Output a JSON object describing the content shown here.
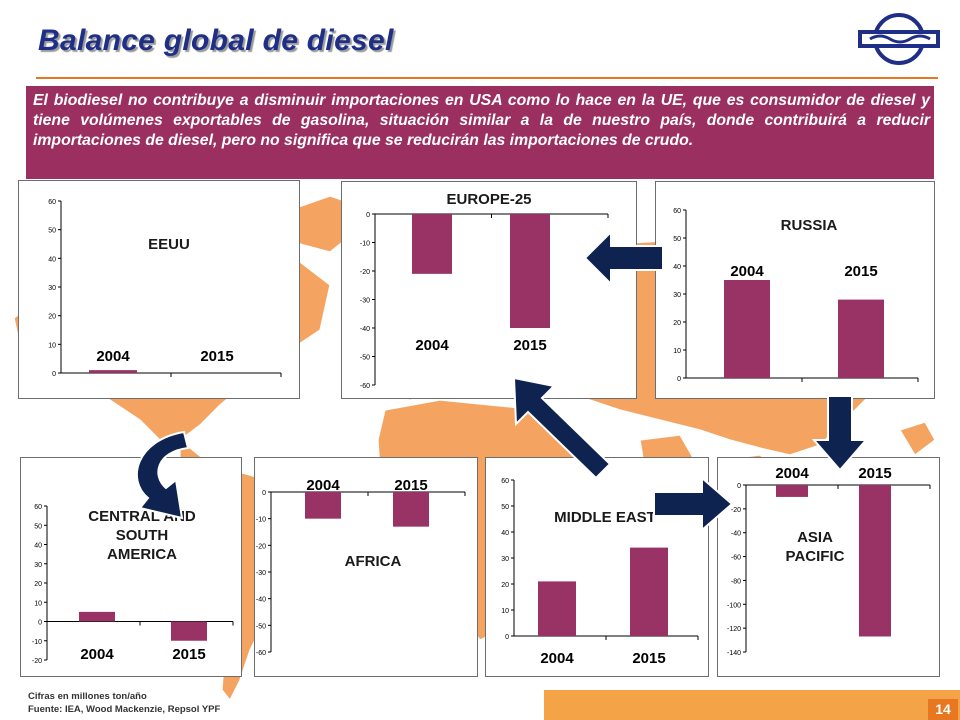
{
  "page": {
    "title": "Balance global  de diesel",
    "note": "El biodiesel  no contribuye a disminuir importaciones en USA como lo hace en  la UE, que es consumidor de diesel y tiene volúmenes exportables de gasolina, situación similar a la de nuestro país, donde contribuirá a reducir importaciones de diesel, pero no significa que se reducirán las importaciones de crudo.",
    "units_note": "Cifras en millones ton/año",
    "source": "Fuente: IEA, Wood Mackenzie, Repsol YPF",
    "page_number": "14",
    "colors": {
      "bar": "#993366",
      "title": "#1f2f87",
      "note_bg": "#9b3060",
      "map": "#f4a460",
      "accent": "#e87722",
      "arrow": "#0f2350"
    },
    "icons": [
      "company-logo-icon",
      "world-map",
      "arrow-left-icon",
      "arrow-down-icon",
      "arrow-right-icon",
      "arrow-up-left-icon",
      "curved-arrow-icon"
    ]
  },
  "chart_data": [
    {
      "type": "bar",
      "region": "EEUU",
      "title": "EEUU",
      "categories": [
        "2004",
        "2015"
      ],
      "values": [
        1,
        0
      ],
      "ylim": [
        0,
        60
      ],
      "yticks": [
        0,
        10,
        20,
        30,
        40,
        50,
        60
      ]
    },
    {
      "type": "bar",
      "region": "EUROPE-25",
      "title": "EUROPE-25",
      "categories": [
        "2004",
        "2015"
      ],
      "values": [
        -21,
        -40
      ],
      "ylim": [
        -60,
        0
      ],
      "yticks": [
        0,
        -10,
        -20,
        -30,
        -40,
        -50,
        -60
      ]
    },
    {
      "type": "bar",
      "region": "RUSSIA",
      "title": "RUSSIA",
      "categories": [
        "2004",
        "2015"
      ],
      "values": [
        35,
        28
      ],
      "ylim": [
        0,
        60
      ],
      "yticks": [
        0,
        10,
        20,
        30,
        40,
        50,
        60
      ]
    },
    {
      "type": "bar",
      "region": "CENTRAL AND SOUTH AMERICA",
      "title": "CENTRAL AND SOUTH AMERICA",
      "categories": [
        "2004",
        "2015"
      ],
      "values": [
        5,
        -10
      ],
      "ylim": [
        -20,
        60
      ],
      "yticks": [
        60,
        50,
        40,
        30,
        20,
        10,
        0,
        -10,
        -20
      ]
    },
    {
      "type": "bar",
      "region": "AFRICA",
      "title": "AFRICA",
      "categories": [
        "2004",
        "2015"
      ],
      "values": [
        -10,
        -13
      ],
      "ylim": [
        -60,
        0
      ],
      "yticks": [
        0,
        -10,
        -20,
        -30,
        -40,
        -50,
        -60
      ]
    },
    {
      "type": "bar",
      "region": "MIDDLE EAST",
      "title": "MIDDLE EAST",
      "categories": [
        "2004",
        "2015"
      ],
      "values": [
        21,
        34
      ],
      "ylim": [
        0,
        60
      ],
      "yticks": [
        0,
        10,
        20,
        30,
        40,
        50,
        60
      ]
    },
    {
      "type": "bar",
      "region": "ASIA PACIFIC",
      "title": "ASIA PACIFIC",
      "categories": [
        "2004",
        "2015"
      ],
      "values": [
        -10,
        -127
      ],
      "ylim": [
        -140,
        0
      ],
      "yticks": [
        0,
        -20,
        -40,
        -60,
        -80,
        -100,
        -120,
        -140
      ]
    }
  ]
}
